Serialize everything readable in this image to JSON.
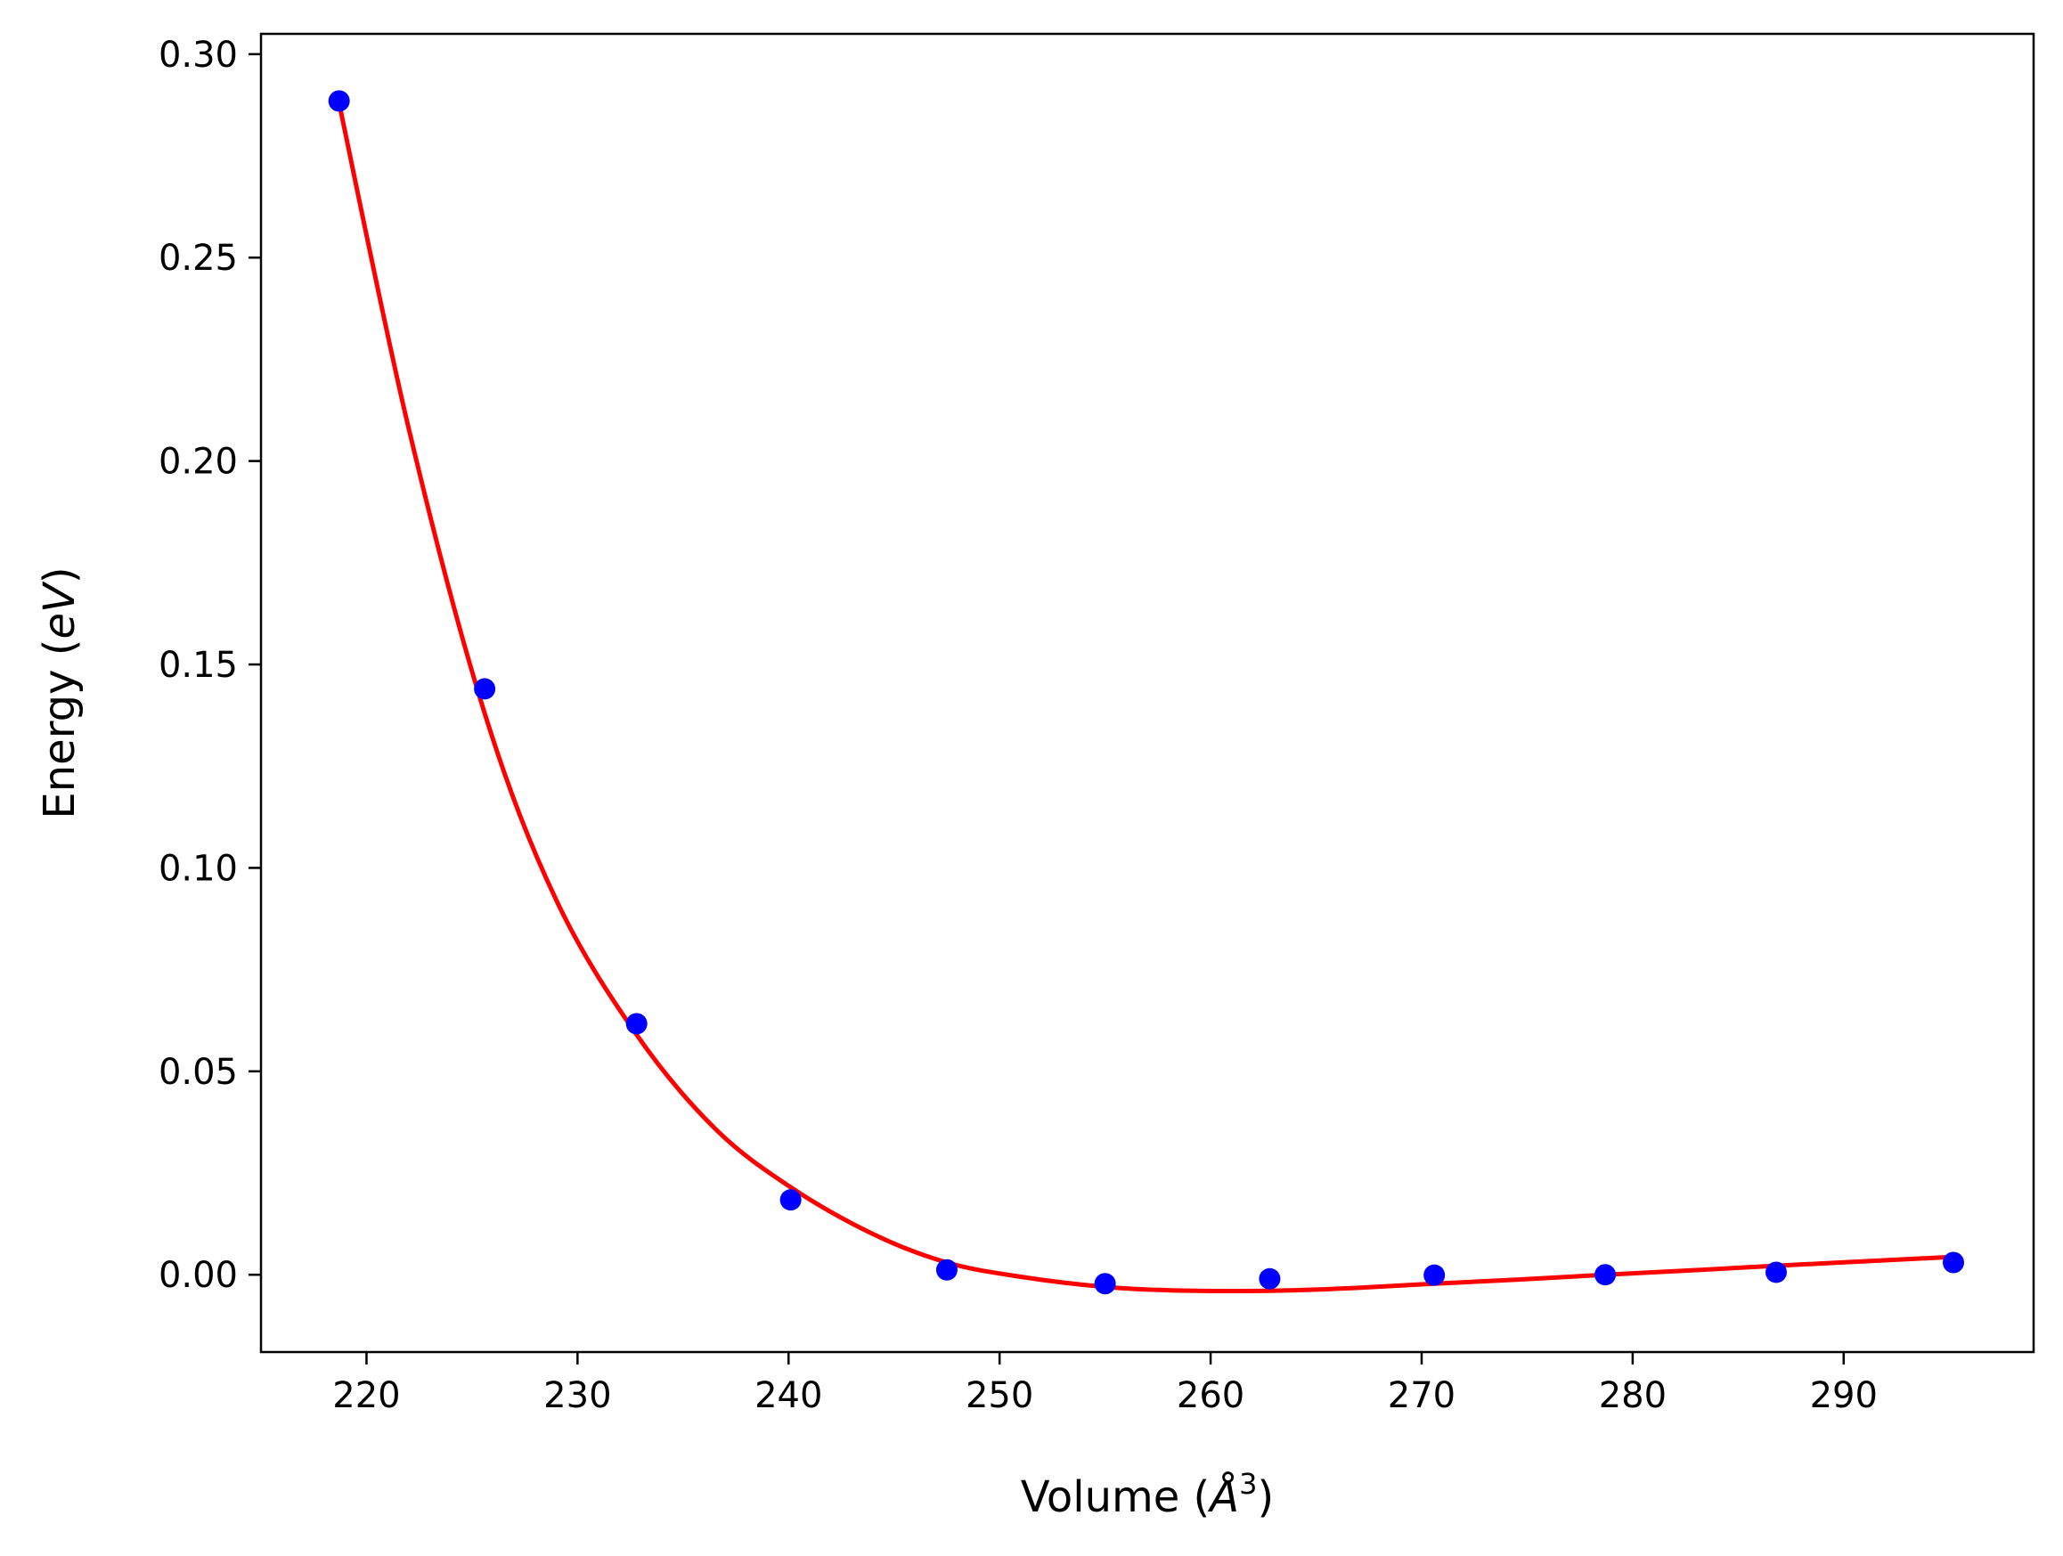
{
  "chart_data": {
    "type": "scatter",
    "title": "",
    "xlabel": {
      "prefix": "Volume (",
      "unit": "Å",
      "exponent": "3",
      "suffix": ")"
    },
    "ylabel": {
      "prefix": "Energy (",
      "unit": "eV",
      "suffix": ")"
    },
    "xlim": [
      215,
      299
    ],
    "ylim": [
      -0.019,
      0.305
    ],
    "xticks": [
      220,
      230,
      240,
      250,
      260,
      270,
      280,
      290
    ],
    "yticks": [
      0.0,
      0.05,
      0.1,
      0.15,
      0.2,
      0.25,
      0.3
    ],
    "xtick_labels": [
      "220",
      "230",
      "240",
      "250",
      "260",
      "270",
      "280",
      "290"
    ],
    "ytick_labels": [
      "0.00",
      "0.05",
      "0.10",
      "0.15",
      "0.20",
      "0.25",
      "0.30"
    ],
    "grid": false,
    "series": [
      {
        "kind": "points",
        "color": "#0000ff",
        "x": [
          218.7,
          225.6,
          232.8,
          240.1,
          247.5,
          255.0,
          262.8,
          270.6,
          278.7,
          286.8,
          295.2
        ],
        "y": [
          0.2885,
          0.144,
          0.0617,
          0.0184,
          0.0012,
          -0.0022,
          -0.001,
          -0.0001,
          0.0,
          0.0006,
          0.003
        ]
      },
      {
        "kind": "fit-line",
        "color": "#ff0000",
        "x": [
          218.7,
          222.0,
          225.6,
          229.0,
          232.8,
          236.5,
          240.1,
          244.0,
          247.5,
          251.0,
          255.0,
          258.0,
          261.0,
          264.0,
          267.0,
          270.6,
          274.5,
          278.7,
          282.5,
          286.8,
          291.0,
          295.2
        ],
        "y": [
          0.288,
          0.208,
          0.138,
          0.092,
          0.059,
          0.036,
          0.0215,
          0.01,
          0.003,
          -0.0005,
          -0.003,
          -0.0038,
          -0.004,
          -0.0038,
          -0.0032,
          -0.0022,
          -0.0012,
          0.0,
          0.001,
          0.0022,
          0.0033,
          0.0044
        ]
      }
    ]
  }
}
